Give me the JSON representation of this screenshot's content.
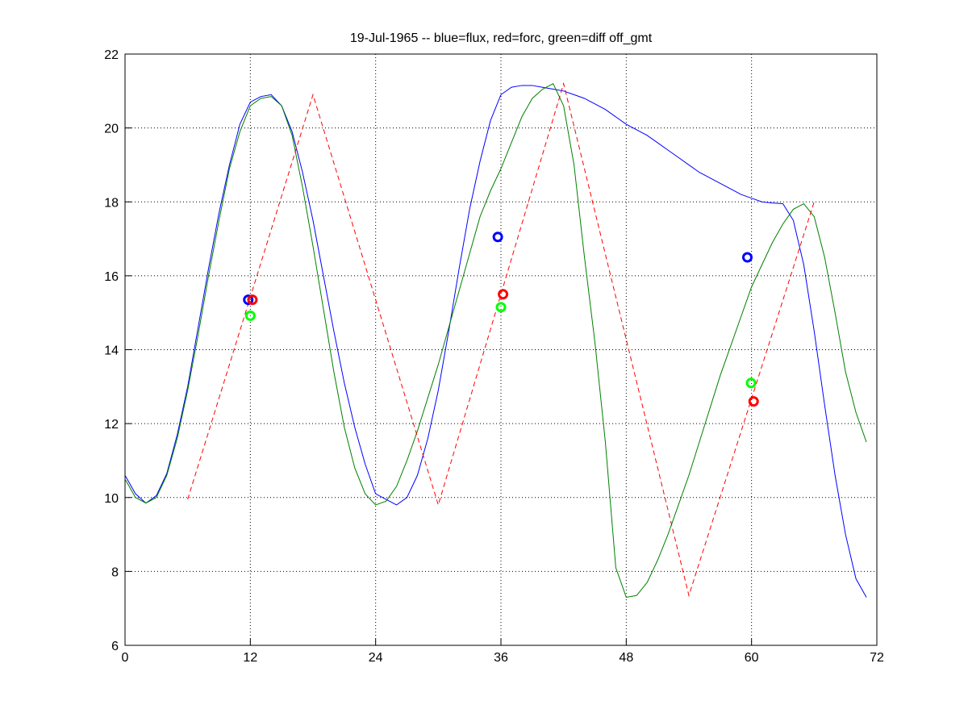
{
  "chart_data": {
    "type": "line",
    "title": "19-Jul-1965 -- blue=flux, red=forc, green=diff off_gmt",
    "x": [
      0,
      1,
      2,
      3,
      4,
      5,
      6,
      7,
      8,
      9,
      10,
      11,
      12,
      13,
      14,
      15,
      16,
      17,
      18,
      19,
      20,
      21,
      22,
      23,
      24,
      25,
      26,
      27,
      28,
      29,
      30,
      31,
      32,
      33,
      34,
      35,
      36,
      37,
      38,
      39,
      40,
      41,
      42,
      43,
      44,
      45,
      46,
      47,
      48,
      49,
      50,
      51,
      52,
      53,
      54,
      55,
      56,
      57,
      58,
      59,
      60,
      61,
      62,
      63,
      64,
      65,
      66,
      67,
      68,
      69,
      70,
      71
    ],
    "series": [
      {
        "color": "#0000ff",
        "style": "solid",
        "values": [
          10.6,
          10.1,
          9.85,
          10.05,
          10.65,
          11.7,
          13.0,
          14.6,
          16.2,
          17.7,
          19.0,
          20.1,
          20.7,
          20.85,
          20.9,
          20.6,
          19.9,
          18.8,
          17.5,
          16.0,
          14.5,
          13.1,
          11.9,
          10.9,
          10.1,
          9.95,
          9.8,
          10.0,
          10.6,
          11.6,
          12.9,
          14.5,
          16.2,
          17.8,
          19.1,
          20.2,
          20.9,
          21.1,
          21.15,
          21.15,
          21.1,
          21.05,
          21.0,
          20.9,
          20.8,
          20.65,
          20.5,
          20.3,
          20.1,
          19.95,
          19.8,
          19.6,
          19.4,
          19.2,
          19.0,
          18.8,
          18.65,
          18.5,
          18.35,
          18.2,
          18.1,
          18.0,
          17.97,
          17.95,
          17.5,
          16.3,
          14.5,
          12.5,
          10.6,
          9.0,
          7.8,
          7.3
        ]
      },
      {
        "color": "#008000",
        "style": "solid",
        "values": [
          10.5,
          10.0,
          9.85,
          10.0,
          10.6,
          11.6,
          12.9,
          14.4,
          16.0,
          17.5,
          18.9,
          19.9,
          20.6,
          20.8,
          20.85,
          20.6,
          19.8,
          18.4,
          16.8,
          15.1,
          13.4,
          11.9,
          10.8,
          10.1,
          9.8,
          9.9,
          10.3,
          11.0,
          11.8,
          12.7,
          13.6,
          14.6,
          15.6,
          16.6,
          17.6,
          18.3,
          18.9,
          19.6,
          20.3,
          20.8,
          21.05,
          21.2,
          20.6,
          19.0,
          16.5,
          14.2,
          11.5,
          8.1,
          7.3,
          7.35,
          7.7,
          8.3,
          9.0,
          9.8,
          10.6,
          11.5,
          12.4,
          13.3,
          14.1,
          14.9,
          15.7,
          16.3,
          16.9,
          17.4,
          17.8,
          17.95,
          17.6,
          16.5,
          15.0,
          13.4,
          12.3,
          11.5
        ]
      },
      {
        "color": "#ff0000",
        "style": "dashed",
        "x": [
          6,
          18,
          30,
          42,
          54,
          66
        ],
        "values": [
          9.95,
          20.9,
          9.8,
          21.2,
          7.35,
          18.0
        ]
      },
      {
        "color": "#0000ff",
        "style": "marker",
        "x": [
          11.8,
          35.7,
          59.6
        ],
        "values": [
          15.35,
          17.05,
          16.5
        ]
      },
      {
        "color": "#ff0000",
        "style": "marker",
        "x": [
          12.2,
          36.2,
          60.2
        ],
        "values": [
          15.35,
          15.5,
          12.6
        ]
      },
      {
        "color": "#00ff00",
        "style": "marker",
        "x": [
          12.0,
          36.0,
          59.95
        ],
        "values": [
          14.92,
          15.15,
          13.1
        ]
      }
    ],
    "xlim": [
      0,
      72
    ],
    "xticks": [
      0,
      12,
      24,
      36,
      48,
      60,
      72
    ],
    "ylim": [
      6,
      22
    ],
    "yticks": [
      6,
      8,
      10,
      12,
      14,
      16,
      18,
      20,
      22
    ],
    "grid": true
  }
}
